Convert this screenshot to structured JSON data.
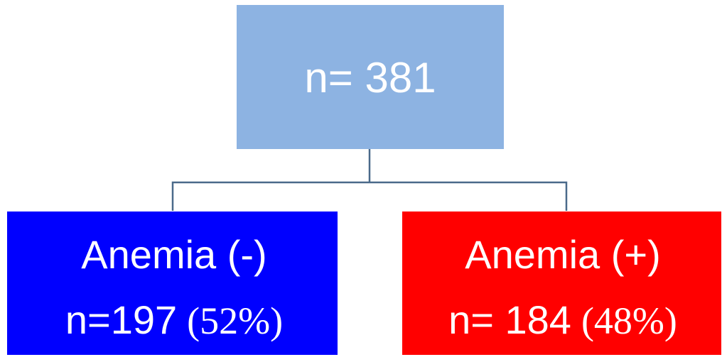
{
  "nodes": [
    {
      "label": "n= 381"
    },
    {
      "label": "Anemia (-)",
      "count": "n=197",
      "percent": "(52%)"
    },
    {
      "label": "Anemia (+)",
      "count": "n= 184",
      "percent": "(48%)"
    }
  ]
}
